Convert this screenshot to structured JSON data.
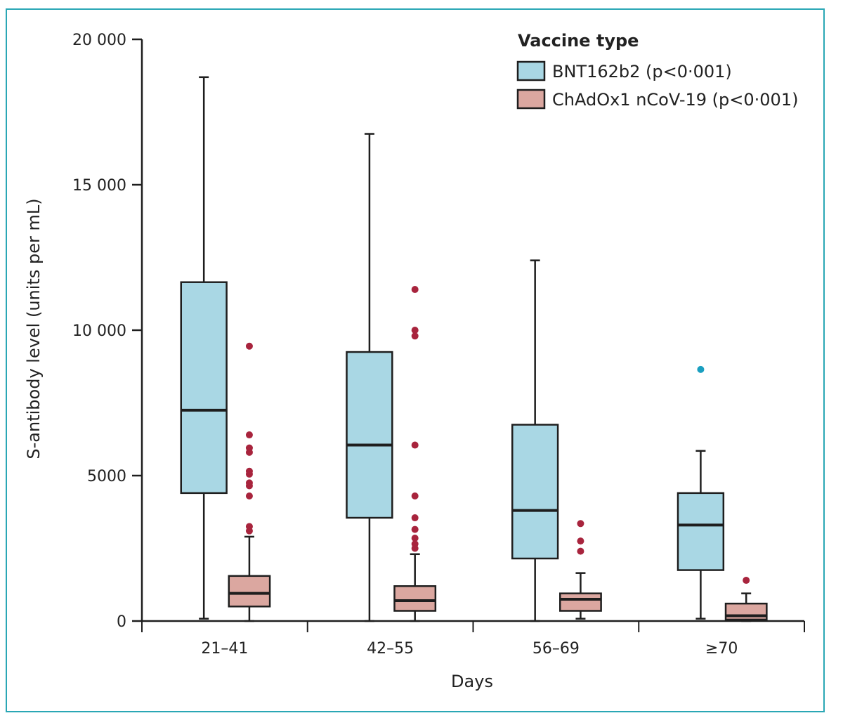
{
  "chart_data": {
    "type": "box",
    "xlabel": "Days",
    "ylabel": "S-antibody level (units per mL)",
    "ylim": [
      0,
      20000
    ],
    "yticks": [
      0,
      5000,
      10000,
      15000,
      20000
    ],
    "ytick_labels": [
      "0",
      "5000",
      "10 000",
      "15 000",
      "20 000"
    ],
    "categories": [
      "21–41",
      "42–55",
      "56–69",
      "≥70"
    ],
    "legend": {
      "title": "Vaccine type",
      "position": "top-right"
    },
    "series": [
      {
        "name": "BNT162b2 (p<0·001)",
        "fill": "#a9d7e4",
        "outlier_color": "#1a9fc0",
        "boxes": [
          {
            "whisker_low": 80,
            "q1": 4400,
            "median": 7250,
            "q3": 11650,
            "whisker_high": 18700,
            "outliers": []
          },
          {
            "whisker_low": 0,
            "q1": 3550,
            "median": 6050,
            "q3": 9250,
            "whisker_high": 16750,
            "outliers": []
          },
          {
            "whisker_low": 0,
            "q1": 2150,
            "median": 3800,
            "q3": 6750,
            "whisker_high": 12400,
            "outliers": []
          },
          {
            "whisker_low": 80,
            "q1": 1750,
            "median": 3300,
            "q3": 4400,
            "whisker_high": 5850,
            "outliers": [
              8650
            ]
          }
        ]
      },
      {
        "name": "ChAdOx1 nCoV-19 (p<0·001)",
        "fill": "#dba7a0",
        "outlier_color": "#a8243d",
        "boxes": [
          {
            "whisker_low": 0,
            "q1": 500,
            "median": 950,
            "q3": 1550,
            "whisker_high": 2900,
            "outliers": [
              3100,
              3250,
              4300,
              4650,
              4750,
              5050,
              5150,
              5800,
              5950,
              6400,
              9450
            ]
          },
          {
            "whisker_low": 0,
            "q1": 350,
            "median": 700,
            "q3": 1200,
            "whisker_high": 2300,
            "outliers": [
              2500,
              2650,
              2850,
              3150,
              3550,
              4300,
              6050,
              9800,
              10000,
              11400
            ]
          },
          {
            "whisker_low": 80,
            "q1": 350,
            "median": 750,
            "q3": 950,
            "whisker_high": 1650,
            "outliers": [
              2400,
              2750,
              3350
            ]
          },
          {
            "whisker_low": 0,
            "q1": 50,
            "median": 180,
            "q3": 600,
            "whisker_high": 950,
            "outliers": [
              1400
            ]
          }
        ]
      }
    ]
  }
}
